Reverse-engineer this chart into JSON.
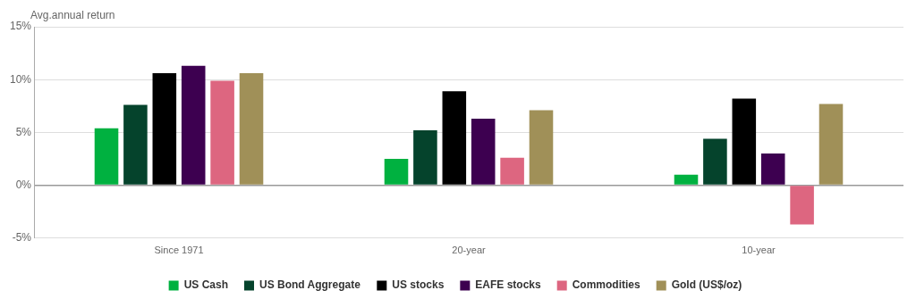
{
  "chart_data": {
    "type": "bar",
    "ylabel": "Avg.annual return",
    "categories": [
      "Since 1971",
      "20-year",
      "10-year"
    ],
    "series": [
      {
        "name": "US Cash",
        "color": "#00b140",
        "values": [
          5.4,
          2.5,
          1.0
        ]
      },
      {
        "name": "US Bond Aggregate",
        "color": "#05432c",
        "values": [
          7.6,
          5.2,
          4.4
        ]
      },
      {
        "name": "US stocks",
        "color": "#000000",
        "values": [
          10.6,
          8.9,
          8.2
        ]
      },
      {
        "name": "EAFE stocks",
        "color": "#3d0050",
        "values": [
          11.3,
          6.3,
          3.0
        ]
      },
      {
        "name": "Commodities",
        "color": "#dd6680",
        "values": [
          9.9,
          2.6,
          -3.7
        ]
      },
      {
        "name": "Gold (US$/oz)",
        "color": "#a09058",
        "values": [
          10.6,
          7.1,
          7.7
        ]
      }
    ],
    "ylim": [
      -5,
      15
    ],
    "yticks": [
      {
        "value": -5,
        "label": "-5%"
      },
      {
        "value": 0,
        "label": "0%"
      },
      {
        "value": 5,
        "label": "5%"
      },
      {
        "value": 10,
        "label": "10%"
      },
      {
        "value": 15,
        "label": "15%"
      }
    ],
    "grid": "y",
    "legend": "bottom"
  }
}
